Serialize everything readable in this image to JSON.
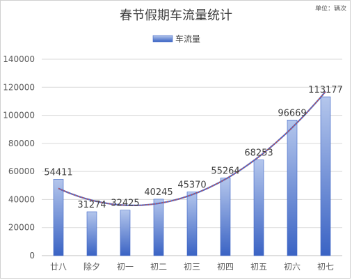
{
  "chart_data": {
    "type": "bar",
    "title": "春节假期车流量统计",
    "unit_note": "单位：辆次",
    "legend": "车流量",
    "legend_position": "top",
    "categories": [
      "廿八",
      "除夕",
      "初一",
      "初二",
      "初三",
      "初四",
      "初五",
      "初六",
      "初七"
    ],
    "values": [
      54411,
      31274,
      32425,
      40245,
      45370,
      55264,
      68253,
      96669,
      113177
    ],
    "ylim": [
      0,
      140000
    ],
    "yticks": [
      0,
      20000,
      40000,
      60000,
      80000,
      100000,
      120000,
      140000
    ],
    "grid": true,
    "trendline": "polynomial",
    "colors": {
      "bar_top": "#b4c6ec",
      "bar_bottom": "#3a63c4",
      "bar_edge": "#3b63c5",
      "trend_a": "#c0504d",
      "trend_b": "#4f6fd0",
      "grid": "#d9d9d9",
      "axis": "#bfbfbf",
      "text": "#595959",
      "title": "#404040"
    }
  }
}
